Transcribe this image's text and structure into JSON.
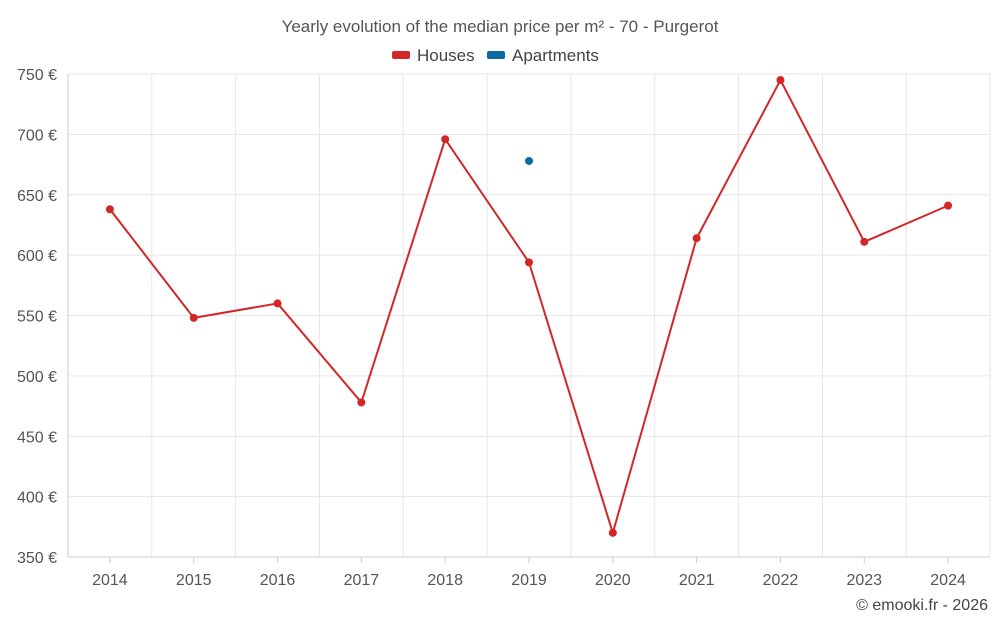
{
  "chart_data": {
    "type": "line",
    "title": "Yearly evolution of the median price per m² - 70 - Purgerot",
    "categories": [
      "2014",
      "2015",
      "2016",
      "2017",
      "2018",
      "2019",
      "2020",
      "2021",
      "2022",
      "2023",
      "2024"
    ],
    "series": [
      {
        "name": "Houses",
        "color": "#d32626",
        "values": [
          638,
          548,
          560,
          478,
          696,
          594,
          370,
          614,
          745,
          611,
          641
        ]
      },
      {
        "name": "Apartments",
        "color": "#0a6aa1",
        "values": [
          null,
          null,
          null,
          null,
          null,
          678,
          null,
          null,
          null,
          null,
          null
        ]
      }
    ],
    "y_ticks": [
      350,
      400,
      450,
      500,
      550,
      600,
      650,
      700,
      750
    ],
    "y_tick_labels": [
      "350 €",
      "400 €",
      "450 €",
      "500 €",
      "550 €",
      "600 €",
      "650 €",
      "700 €",
      "750 €"
    ],
    "ylim": [
      350,
      750
    ],
    "xlabel": "",
    "ylabel": "",
    "grid": true,
    "legend_position": "top-center"
  },
  "credit": "© emooki.fr - 2026"
}
